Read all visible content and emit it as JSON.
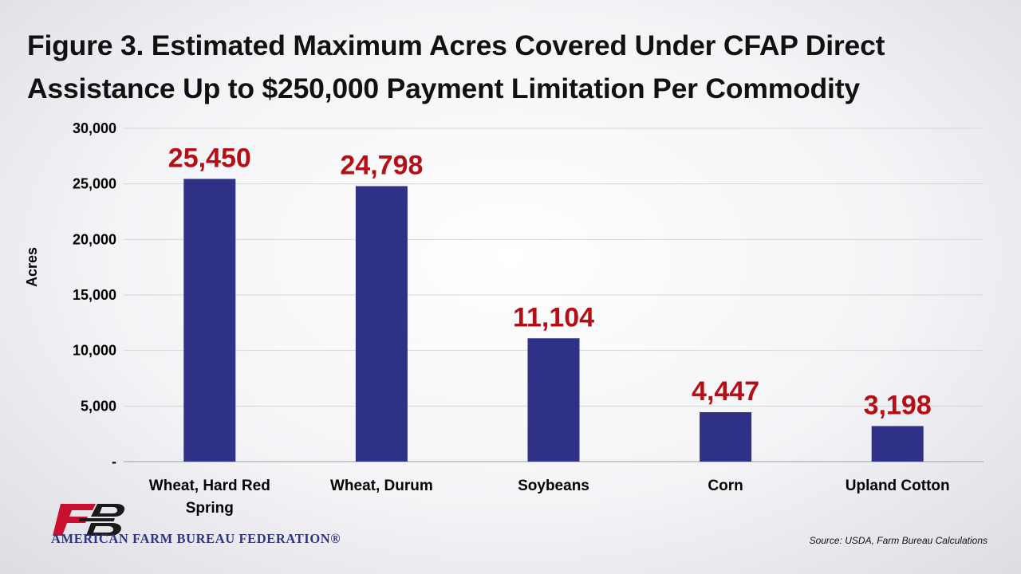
{
  "chart_data": {
    "type": "bar",
    "title": "Figure 3. Estimated Maximum Acres Covered Under CFAP Direct Assistance Up to $250,000 Payment Limitation Per Commodity",
    "xlabel": "",
    "ylabel": "Acres",
    "ylim": [
      0,
      30000
    ],
    "yticks": [
      {
        "value": 0,
        "label": "-"
      },
      {
        "value": 5000,
        "label": "5,000"
      },
      {
        "value": 10000,
        "label": "10,000"
      },
      {
        "value": 15000,
        "label": "15,000"
      },
      {
        "value": 20000,
        "label": "20,000"
      },
      {
        "value": 25000,
        "label": "25,000"
      },
      {
        "value": 30000,
        "label": "30,000"
      }
    ],
    "categories": [
      [
        "Wheat, Hard Red",
        "Spring"
      ],
      [
        "Wheat, Durum"
      ],
      [
        "Soybeans"
      ],
      [
        "Corn"
      ],
      [
        "Upland Cotton"
      ]
    ],
    "values": [
      25450,
      24798,
      11104,
      4447,
      3198
    ],
    "value_labels": [
      "25,450",
      "24,798",
      "11,104",
      "4,447",
      "3,198"
    ],
    "grid": true,
    "legend": "none",
    "colors": {
      "bar": "#2e3185",
      "value_label": "#b40f14",
      "grid": "#d6d6d6",
      "axis": "#b0b0b0"
    }
  },
  "footer": {
    "organization": "AMERICAN FARM BUREAU FEDERATION®",
    "source": "Source: USDA, Farm Bureau Calculations"
  },
  "logo": {
    "icon": "farm-bureau-fb-logo-icon",
    "colors": {
      "red": "#c8102e",
      "black": "#1a1a1a"
    }
  }
}
